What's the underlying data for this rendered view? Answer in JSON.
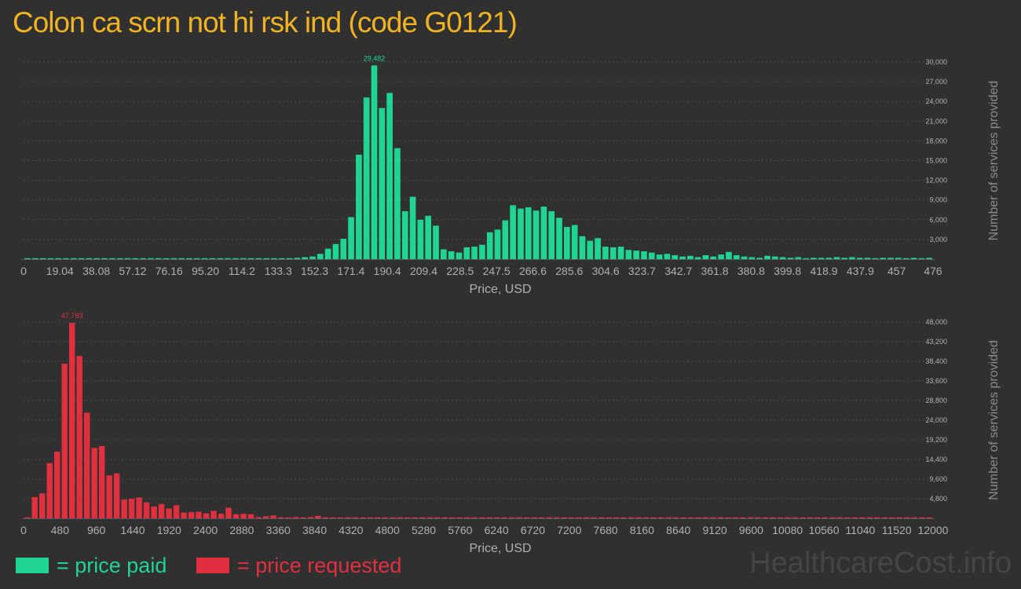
{
  "title": "Colon ca scrn not hi rsk ind (code G0121)",
  "legend": {
    "paid_label": "= price paid",
    "requested_label": "= price requested"
  },
  "watermark": "HealthcareCost.info",
  "colors": {
    "background": "#303030",
    "title": "#f0b323",
    "paid": "#20d494",
    "requested": "#e03040",
    "axis_text": "#b0b0b0",
    "grid": "#4a4a4a"
  },
  "chart_data": [
    {
      "type": "bar",
      "name": "paid",
      "xlabel": "Price, USD",
      "ylabel": "Number of services provided",
      "xlim": [
        0,
        476
      ],
      "ylim": [
        0,
        30000
      ],
      "x_ticks": [
        "0",
        "19.04",
        "38.08",
        "57.12",
        "76.16",
        "95.20",
        "114.2",
        "133.3",
        "152.3",
        "171.4",
        "190.4",
        "209.4",
        "228.5",
        "247.5",
        "266.6",
        "285.6",
        "304.6",
        "323.7",
        "342.7",
        "361.8",
        "380.8",
        "399.8",
        "418.9",
        "437.9",
        "457",
        "476"
      ],
      "y_ticks": [
        "3,000",
        "6,000",
        "9,000",
        "12,000",
        "15,000",
        "18,000",
        "21,000",
        "24,000",
        "27,000",
        "30,000"
      ],
      "peak_label": "29,482",
      "values": [
        120,
        20,
        10,
        10,
        10,
        10,
        10,
        10,
        60,
        10,
        10,
        10,
        10,
        10,
        10,
        60,
        10,
        10,
        10,
        10,
        10,
        10,
        10,
        10,
        10,
        10,
        10,
        60,
        10,
        10,
        10,
        80,
        100,
        120,
        150,
        200,
        300,
        400,
        800,
        1600,
        2300,
        3100,
        6400,
        15900,
        24600,
        29482,
        23000,
        25300,
        16900,
        7300,
        9500,
        6000,
        6600,
        5100,
        1500,
        1200,
        1000,
        1800,
        1900,
        2200,
        4100,
        4500,
        5900,
        8200,
        7700,
        7900,
        7400,
        8000,
        7300,
        6300,
        4900,
        5200,
        3500,
        2800,
        3200,
        1900,
        1800,
        1900,
        1400,
        1300,
        1200,
        1000,
        700,
        800,
        600,
        400,
        500,
        300,
        600,
        400,
        700,
        1100,
        600,
        400,
        300,
        200,
        500,
        400,
        300,
        200,
        300,
        100,
        200,
        200,
        200,
        300,
        200,
        300,
        200,
        200,
        100,
        200,
        200,
        200,
        100,
        200,
        100,
        200
      ]
    },
    {
      "type": "bar",
      "name": "requested",
      "xlabel": "Price, USD",
      "ylabel": "Number of services provided",
      "xlim": [
        0,
        12000
      ],
      "ylim": [
        0,
        48000
      ],
      "x_ticks": [
        "0",
        "480",
        "960",
        "1440",
        "1920",
        "2400",
        "2880",
        "3360",
        "3840",
        "4320",
        "4800",
        "5280",
        "5760",
        "6240",
        "6720",
        "7200",
        "7680",
        "8160",
        "8640",
        "9120",
        "9600",
        "10080",
        "10560",
        "11040",
        "11520",
        "12000"
      ],
      "y_ticks": [
        "4,800",
        "9,600",
        "14,400",
        "19,200",
        "24,000",
        "28,800",
        "33,600",
        "38,400",
        "43,200",
        "48,000"
      ],
      "peak_label": "47,783",
      "values": [
        200,
        5200,
        6100,
        13500,
        16300,
        37800,
        47783,
        39700,
        25800,
        17200,
        17700,
        10500,
        11000,
        4600,
        4800,
        5100,
        3900,
        2900,
        3500,
        2400,
        3200,
        1400,
        1500,
        1600,
        1200,
        1800,
        1100,
        2600,
        1000,
        1100,
        1000,
        300,
        500,
        700,
        200,
        200,
        300,
        200,
        300,
        600,
        200,
        200,
        100,
        200,
        100,
        200,
        100,
        200,
        100,
        100,
        100,
        100,
        100,
        100,
        100,
        100,
        100,
        100,
        100,
        100,
        200,
        100,
        100,
        100,
        100,
        100,
        100,
        100,
        100,
        100,
        100,
        100,
        100,
        100,
        100,
        100,
        100,
        100,
        100,
        100,
        100,
        100,
        100,
        100,
        100,
        100,
        100,
        100,
        100,
        100,
        100,
        100,
        100,
        100,
        100,
        100,
        100,
        100,
        100,
        100,
        100,
        100,
        100,
        100,
        100,
        100,
        100,
        100,
        100,
        100,
        100,
        100,
        100,
        100,
        100,
        100,
        100,
        100,
        100,
        100,
        100,
        100
      ]
    }
  ]
}
